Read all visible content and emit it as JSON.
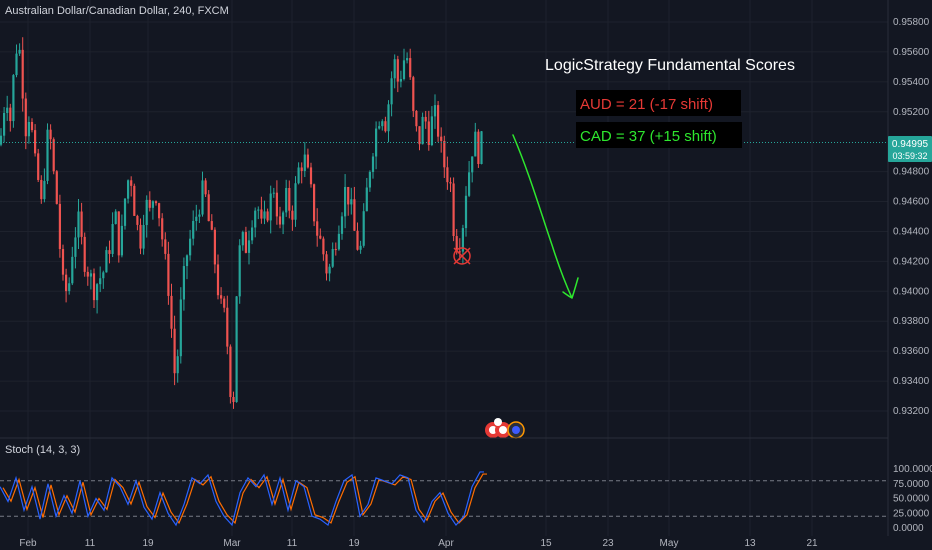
{
  "title": "Australian Dollar/Canadian Dollar, 240, FXCM",
  "annotation": {
    "heading": "LogicStrategy Fundamental Scores",
    "aud": "AUD = 21 (-17 shift)",
    "cad": "CAD = 37 (+15 shift)",
    "aud_color": "#e53935",
    "cad_color": "#2ee62e",
    "arrow_color": "#2ee62e",
    "target_color": "#e53935"
  },
  "price_badge": {
    "price": "0.94995",
    "countdown": "03:59:32",
    "color": "#26a69a"
  },
  "indicator": {
    "label": "Stoch (14, 3, 3)",
    "k_color": "#2962ff",
    "d_color": "#ff6d00"
  },
  "colors": {
    "up": "#26a69a",
    "down": "#ef5350",
    "background": "#131722",
    "grid": "#1e222d",
    "price_line": "#26a69a"
  },
  "chart_data": [
    {
      "type": "candlestick",
      "symbol": "AUDCAD",
      "interval": "240",
      "ylim": [
        0.9308,
        0.9592
      ],
      "yticks": [
        "0.95800",
        "0.95600",
        "0.95400",
        "0.95200",
        "0.94800",
        "0.94600",
        "0.94400",
        "0.94200",
        "0.94000",
        "0.93800",
        "0.93600",
        "0.93400",
        "0.93200"
      ],
      "xticks": [
        "Feb",
        "11",
        "19",
        "Mar",
        "11",
        "19",
        "Apr",
        "15",
        "23",
        "May",
        "13",
        "21"
      ],
      "last_price": 0.94995,
      "close_path": [
        {
          "x": 0,
          "y": 0.9498
        },
        {
          "x": 6,
          "y": 0.9535
        },
        {
          "x": 11,
          "y": 0.9512
        },
        {
          "x": 15,
          "y": 0.9562
        },
        {
          "x": 19,
          "y": 0.9565
        },
        {
          "x": 22,
          "y": 0.9542
        },
        {
          "x": 26,
          "y": 0.9508
        },
        {
          "x": 30,
          "y": 0.9522
        },
        {
          "x": 34,
          "y": 0.9488
        },
        {
          "x": 38,
          "y": 0.9475
        },
        {
          "x": 41,
          "y": 0.9455
        },
        {
          "x": 45,
          "y": 0.9485
        },
        {
          "x": 49,
          "y": 0.9512
        },
        {
          "x": 53,
          "y": 0.9482
        },
        {
          "x": 58,
          "y": 0.9452
        },
        {
          "x": 62,
          "y": 0.9405
        },
        {
          "x": 68,
          "y": 0.9398
        },
        {
          "x": 73,
          "y": 0.9432
        },
        {
          "x": 78,
          "y": 0.9448
        },
        {
          "x": 84,
          "y": 0.9422
        },
        {
          "x": 89,
          "y": 0.9412
        },
        {
          "x": 94,
          "y": 0.9402
        },
        {
          "x": 99,
          "y": 0.9408
        },
        {
          "x": 104,
          "y": 0.9414
        },
        {
          "x": 110,
          "y": 0.9432
        },
        {
          "x": 115,
          "y": 0.9452
        },
        {
          "x": 120,
          "y": 0.9424
        },
        {
          "x": 125,
          "y": 0.9462
        },
        {
          "x": 130,
          "y": 0.9482
        },
        {
          "x": 135,
          "y": 0.9452
        },
        {
          "x": 140,
          "y": 0.9432
        },
        {
          "x": 145,
          "y": 0.946
        },
        {
          "x": 150,
          "y": 0.9452
        },
        {
          "x": 155,
          "y": 0.947
        },
        {
          "x": 160,
          "y": 0.9448
        },
        {
          "x": 165,
          "y": 0.942
        },
        {
          "x": 170,
          "y": 0.9395
        },
        {
          "x": 173,
          "y": 0.9355
        },
        {
          "x": 176,
          "y": 0.9338
        },
        {
          "x": 180,
          "y": 0.9385
        },
        {
          "x": 186,
          "y": 0.9422
        },
        {
          "x": 192,
          "y": 0.944
        },
        {
          "x": 198,
          "y": 0.9455
        },
        {
          "x": 204,
          "y": 0.947
        },
        {
          "x": 209,
          "y": 0.9445
        },
        {
          "x": 214,
          "y": 0.9425
        },
        {
          "x": 220,
          "y": 0.939
        },
        {
          "x": 224,
          "y": 0.9385
        },
        {
          "x": 228,
          "y": 0.936
        },
        {
          "x": 231,
          "y": 0.933
        },
        {
          "x": 234,
          "y": 0.933
        },
        {
          "x": 237,
          "y": 0.941
        },
        {
          "x": 241,
          "y": 0.9435
        },
        {
          "x": 246,
          "y": 0.943
        },
        {
          "x": 252,
          "y": 0.945
        },
        {
          "x": 257,
          "y": 0.946
        },
        {
          "x": 262,
          "y": 0.944
        },
        {
          "x": 268,
          "y": 0.9455
        },
        {
          "x": 274,
          "y": 0.947
        },
        {
          "x": 280,
          "y": 0.944
        },
        {
          "x": 286,
          "y": 0.9462
        },
        {
          "x": 292,
          "y": 0.9452
        },
        {
          "x": 298,
          "y": 0.948
        },
        {
          "x": 304,
          "y": 0.949
        },
        {
          "x": 310,
          "y": 0.947
        },
        {
          "x": 316,
          "y": 0.9442
        },
        {
          "x": 322,
          "y": 0.943
        },
        {
          "x": 328,
          "y": 0.941
        },
        {
          "x": 334,
          "y": 0.943
        },
        {
          "x": 340,
          "y": 0.945
        },
        {
          "x": 346,
          "y": 0.947
        },
        {
          "x": 351,
          "y": 0.9455
        },
        {
          "x": 356,
          "y": 0.9432
        },
        {
          "x": 361,
          "y": 0.9428
        },
        {
          "x": 366,
          "y": 0.9462
        },
        {
          "x": 371,
          "y": 0.949
        },
        {
          "x": 376,
          "y": 0.9508
        },
        {
          "x": 381,
          "y": 0.9522
        },
        {
          "x": 386,
          "y": 0.9512
        },
        {
          "x": 390,
          "y": 0.9535
        },
        {
          "x": 394,
          "y": 0.9555
        },
        {
          "x": 398,
          "y": 0.954
        },
        {
          "x": 402,
          "y": 0.9548
        },
        {
          "x": 406,
          "y": 0.9562
        },
        {
          "x": 410,
          "y": 0.954
        },
        {
          "x": 414,
          "y": 0.9512
        },
        {
          "x": 419,
          "y": 0.95
        },
        {
          "x": 424,
          "y": 0.9518
        },
        {
          "x": 429,
          "y": 0.9505
        },
        {
          "x": 434,
          "y": 0.952
        },
        {
          "x": 439,
          "y": 0.9505
        },
        {
          "x": 442,
          "y": 0.949
        },
        {
          "x": 446,
          "y": 0.948
        },
        {
          "x": 450,
          "y": 0.9475
        },
        {
          "x": 454,
          "y": 0.944
        },
        {
          "x": 458,
          "y": 0.943
        },
        {
          "x": 462,
          "y": 0.944
        },
        {
          "x": 466,
          "y": 0.9468
        },
        {
          "x": 470,
          "y": 0.9485
        },
        {
          "x": 474,
          "y": 0.9505
        },
        {
          "x": 478,
          "y": 0.9492
        },
        {
          "x": 482,
          "y": 0.95
        }
      ]
    },
    {
      "type": "line",
      "name": "Stoch (14, 3, 3)",
      "ylim": [
        0,
        100
      ],
      "yticks": [
        "100.0000",
        "75.0000",
        "50.0000",
        "25.0000",
        "0.0000"
      ],
      "bands": [
        80,
        20
      ],
      "k_path": [
        {
          "x": 0,
          "y": 70
        },
        {
          "x": 8,
          "y": 45
        },
        {
          "x": 16,
          "y": 85
        },
        {
          "x": 24,
          "y": 30
        },
        {
          "x": 32,
          "y": 70
        },
        {
          "x": 40,
          "y": 15
        },
        {
          "x": 48,
          "y": 75
        },
        {
          "x": 56,
          "y": 20
        },
        {
          "x": 64,
          "y": 55
        },
        {
          "x": 72,
          "y": 25
        },
        {
          "x": 80,
          "y": 80
        },
        {
          "x": 88,
          "y": 20
        },
        {
          "x": 96,
          "y": 50
        },
        {
          "x": 104,
          "y": 30
        },
        {
          "x": 112,
          "y": 85
        },
        {
          "x": 120,
          "y": 70
        },
        {
          "x": 128,
          "y": 40
        },
        {
          "x": 136,
          "y": 80
        },
        {
          "x": 144,
          "y": 35
        },
        {
          "x": 152,
          "y": 15
        },
        {
          "x": 160,
          "y": 60
        },
        {
          "x": 168,
          "y": 25
        },
        {
          "x": 176,
          "y": 5
        },
        {
          "x": 184,
          "y": 40
        },
        {
          "x": 192,
          "y": 85
        },
        {
          "x": 200,
          "y": 75
        },
        {
          "x": 208,
          "y": 90
        },
        {
          "x": 216,
          "y": 45
        },
        {
          "x": 224,
          "y": 20
        },
        {
          "x": 232,
          "y": 5
        },
        {
          "x": 240,
          "y": 60
        },
        {
          "x": 248,
          "y": 85
        },
        {
          "x": 256,
          "y": 70
        },
        {
          "x": 264,
          "y": 90
        },
        {
          "x": 272,
          "y": 40
        },
        {
          "x": 280,
          "y": 85
        },
        {
          "x": 288,
          "y": 30
        },
        {
          "x": 296,
          "y": 80
        },
        {
          "x": 304,
          "y": 70
        },
        {
          "x": 312,
          "y": 20
        },
        {
          "x": 320,
          "y": 15
        },
        {
          "x": 328,
          "y": 5
        },
        {
          "x": 336,
          "y": 45
        },
        {
          "x": 344,
          "y": 80
        },
        {
          "x": 352,
          "y": 90
        },
        {
          "x": 360,
          "y": 20
        },
        {
          "x": 368,
          "y": 40
        },
        {
          "x": 376,
          "y": 85
        },
        {
          "x": 384,
          "y": 80
        },
        {
          "x": 392,
          "y": 75
        },
        {
          "x": 400,
          "y": 90
        },
        {
          "x": 408,
          "y": 85
        },
        {
          "x": 416,
          "y": 30
        },
        {
          "x": 424,
          "y": 10
        },
        {
          "x": 432,
          "y": 45
        },
        {
          "x": 440,
          "y": 60
        },
        {
          "x": 448,
          "y": 25
        },
        {
          "x": 456,
          "y": 5
        },
        {
          "x": 464,
          "y": 20
        },
        {
          "x": 472,
          "y": 70
        },
        {
          "x": 480,
          "y": 95
        },
        {
          "x": 484,
          "y": 95
        }
      ],
      "d_offset": 3
    }
  ]
}
